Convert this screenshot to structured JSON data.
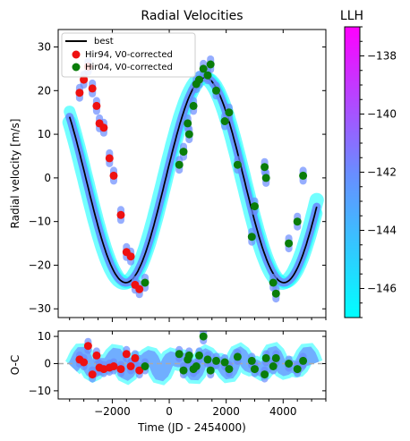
{
  "chart_data": [
    {
      "type": "scatter",
      "title": "Radial Velocities",
      "xlabel": "",
      "ylabel": "Radial velocity [m/s]",
      "xlim": [
        -3900,
        5500
      ],
      "ylim": [
        -32,
        34
      ],
      "yticks": [
        30,
        20,
        10,
        0,
        -10,
        -20,
        -30
      ],
      "grid": false,
      "legend": "top-left",
      "model": {
        "name": "best",
        "x_range": [
          -3500,
          5200
        ],
        "amplitude": 23.5,
        "period": 5550,
        "peak_x": 1250,
        "offset": -0.5,
        "color": "#000000"
      },
      "series": [
        {
          "name": "Hir94, V0-corrected",
          "color": "#ee1111",
          "x": [
            -3150,
            -3000,
            -2850,
            -2700,
            -2550,
            -2450,
            -2300,
            -2100,
            -1950,
            -1700,
            -1500,
            -1350,
            -1200,
            -1050
          ],
          "y": [
            19.5,
            22.5,
            25.5,
            20.5,
            16.5,
            12.5,
            11.5,
            4.5,
            0.5,
            -8.5,
            -17.0,
            -18.0,
            -24.5,
            -25.5
          ]
        },
        {
          "name": "Hir04, V0-corrected",
          "color": "#0a7d0a",
          "x": [
            -850,
            350,
            500,
            650,
            700,
            850,
            950,
            1050,
            1200,
            1350,
            1450,
            1650,
            1950,
            2100,
            2400,
            2900,
            3000,
            3350,
            3400,
            3650,
            3750,
            4200,
            4500,
            4700
          ],
          "y": [
            -24.0,
            3.0,
            6.0,
            12.5,
            10.0,
            16.5,
            21.5,
            22.5,
            25.0,
            23.5,
            26.0,
            20.0,
            13.0,
            15.0,
            3.0,
            -13.5,
            -6.5,
            2.5,
            0.0,
            -24.0,
            -26.5,
            -15.0,
            -10.0,
            0.5
          ]
        }
      ],
      "colorbar": {
        "label": "LLH",
        "range": [
          -147,
          -137
        ],
        "ticks": [
          -138,
          -140,
          -142,
          -144,
          -146
        ],
        "colors": [
          "#00ffff",
          "#6a8cff",
          "#ff00ff"
        ]
      }
    },
    {
      "type": "scatter",
      "title": "",
      "xlabel": "Time (JD - 2454000)",
      "ylabel": "O-C",
      "xlim": [
        -3900,
        5500
      ],
      "ylim": [
        -13,
        12
      ],
      "xticks": [
        -2000,
        0,
        2000,
        4000
      ],
      "yticks": [
        10,
        0,
        -10
      ],
      "zero_line": true,
      "series": [
        {
          "name": "Hir94, V0-corrected",
          "color": "#ee1111",
          "x": [
            -3150,
            -3000,
            -2850,
            -2700,
            -2550,
            -2450,
            -2300,
            -2100,
            -1950,
            -1700,
            -1500,
            -1350,
            -1200,
            -1050
          ],
          "y": [
            1.5,
            0.5,
            6.5,
            -4.0,
            3.0,
            -1.5,
            -2.0,
            -1.5,
            -1.0,
            -2.0,
            3.5,
            -1.0,
            2.0,
            -2.5
          ]
        },
        {
          "name": "Hir04, V0-corrected",
          "color": "#0a7d0a",
          "x": [
            -850,
            350,
            500,
            650,
            700,
            850,
            950,
            1050,
            1200,
            1350,
            1450,
            1650,
            1950,
            2100,
            2400,
            2900,
            3000,
            3350,
            3400,
            3650,
            3750,
            4200,
            4500,
            4700
          ],
          "y": [
            -1.0,
            3.5,
            -2.5,
            1.5,
            3.0,
            -2.0,
            -1.0,
            3.0,
            10.0,
            1.5,
            -2.5,
            1.0,
            0.5,
            -2.0,
            2.5,
            1.0,
            -2.0,
            -4.0,
            2.0,
            -1.0,
            2.0,
            0.0,
            -2.0,
            1.0
          ]
        }
      ]
    }
  ]
}
